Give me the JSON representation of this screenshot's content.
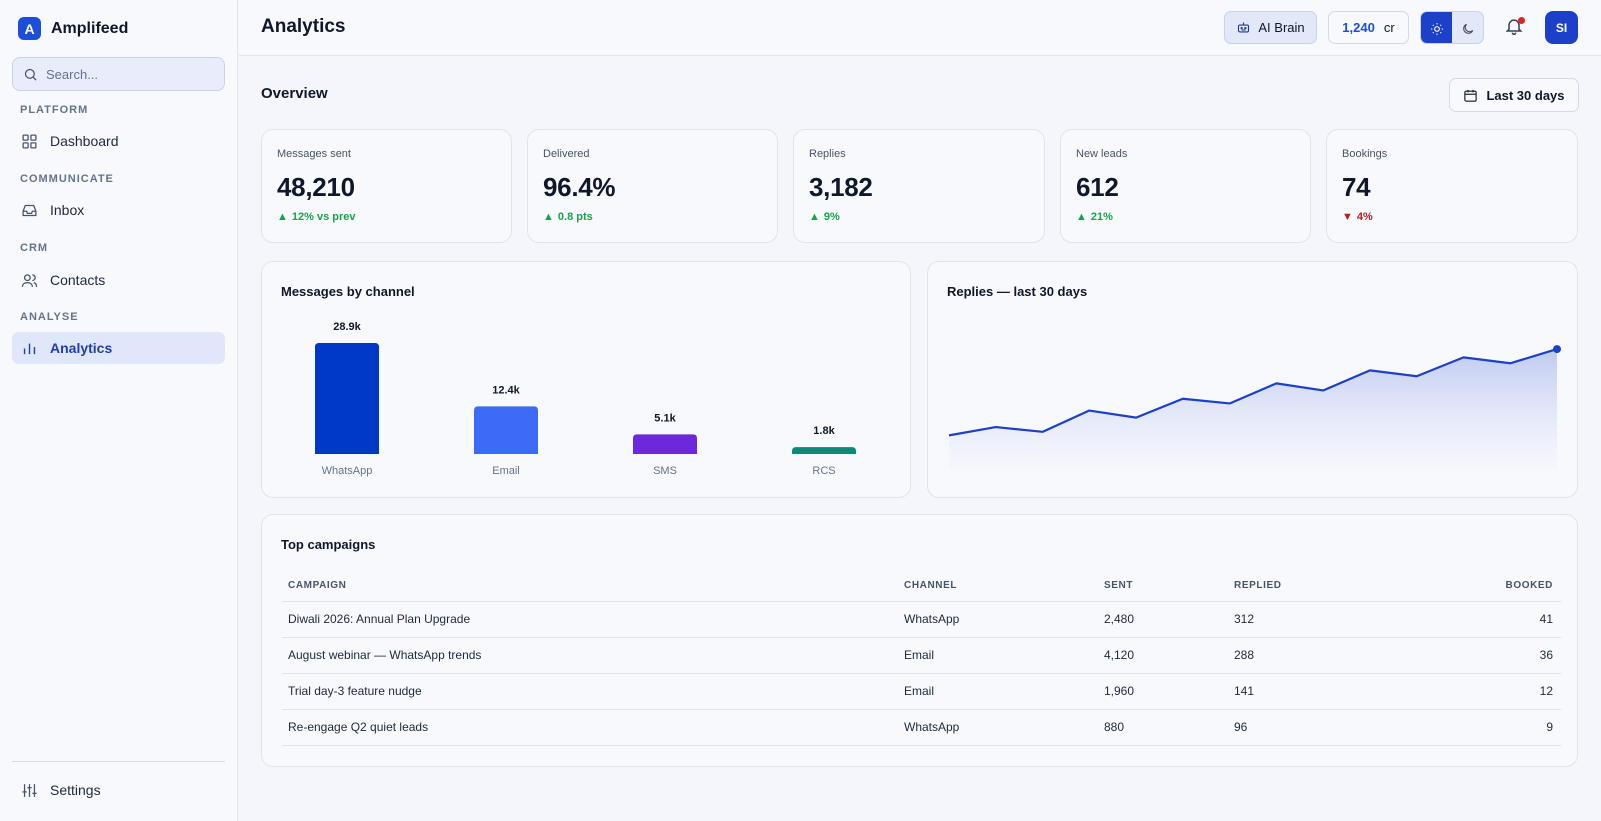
{
  "brand": {
    "initial": "A",
    "name": "Amplifeed"
  },
  "search": {
    "placeholder": "Search..."
  },
  "sidebar": {
    "sections": [
      {
        "title": "PLATFORM"
      },
      {
        "title": "COMMUNICATE"
      },
      {
        "title": "CRM"
      },
      {
        "title": "ANALYSE"
      }
    ],
    "items": [
      {
        "label": "Dashboard",
        "icon": "grid-icon"
      },
      {
        "label": "Inbox",
        "icon": "inbox-icon"
      },
      {
        "label": "Contacts",
        "icon": "users-icon"
      },
      {
        "label": "Analytics",
        "icon": "bar-chart-icon",
        "active": true
      }
    ],
    "settings_label": "Settings"
  },
  "header": {
    "title": "Analytics",
    "ai_brain_label": "AI Brain",
    "credits_value": "1,240",
    "credits_unit": "cr",
    "theme": "light",
    "avatar_initials": "SI",
    "has_notification": true
  },
  "overview": {
    "title": "Overview",
    "range_label": "Last 30 days"
  },
  "kpis": [
    {
      "label": "Messages sent",
      "value": "48,210",
      "delta": "12% vs prev",
      "direction": "up"
    },
    {
      "label": "Delivered",
      "value": "96.4%",
      "delta": "0.8 pts",
      "direction": "up"
    },
    {
      "label": "Replies",
      "value": "3,182",
      "delta": "9%",
      "direction": "up"
    },
    {
      "label": "New leads",
      "value": "612",
      "delta": "21%",
      "direction": "up"
    },
    {
      "label": "Bookings",
      "value": "74",
      "delta": "4%",
      "direction": "down"
    }
  ],
  "chart_data": [
    {
      "type": "bar",
      "title": "Messages by channel",
      "categories": [
        "WhatsApp",
        "Email",
        "SMS",
        "RCS"
      ],
      "values": [
        28.9,
        12.4,
        5.1,
        1.8
      ],
      "value_labels": [
        "28.9k",
        "12.4k",
        "5.1k",
        "1.8k"
      ],
      "colors": [
        "#0039c8",
        "#3d6af7",
        "#6d28d9",
        "#0b8a7a"
      ],
      "grid": false
    },
    {
      "type": "area",
      "title": "Replies — last 30 days",
      "values": [
        31,
        38,
        34,
        52,
        46,
        62,
        58,
        75,
        69,
        86,
        81,
        97,
        92,
        104
      ],
      "color": "#1d40c8",
      "grid": false
    }
  ],
  "campaigns": {
    "title": "Top campaigns",
    "columns": [
      "CAMPAIGN",
      "CHANNEL",
      "SENT",
      "REPLIED",
      "BOOKED"
    ],
    "rows": [
      [
        "Diwali 2026: Annual Plan Upgrade",
        "WhatsApp",
        "2,480",
        "312",
        "41"
      ],
      [
        "August webinar — WhatsApp trends",
        "Email",
        "4,120",
        "288",
        "36"
      ],
      [
        "Trial day-3 feature nudge",
        "Email",
        "1,960",
        "141",
        "12"
      ],
      [
        "Re-engage Q2 quiet leads",
        "WhatsApp",
        "880",
        "96",
        "9"
      ]
    ]
  }
}
